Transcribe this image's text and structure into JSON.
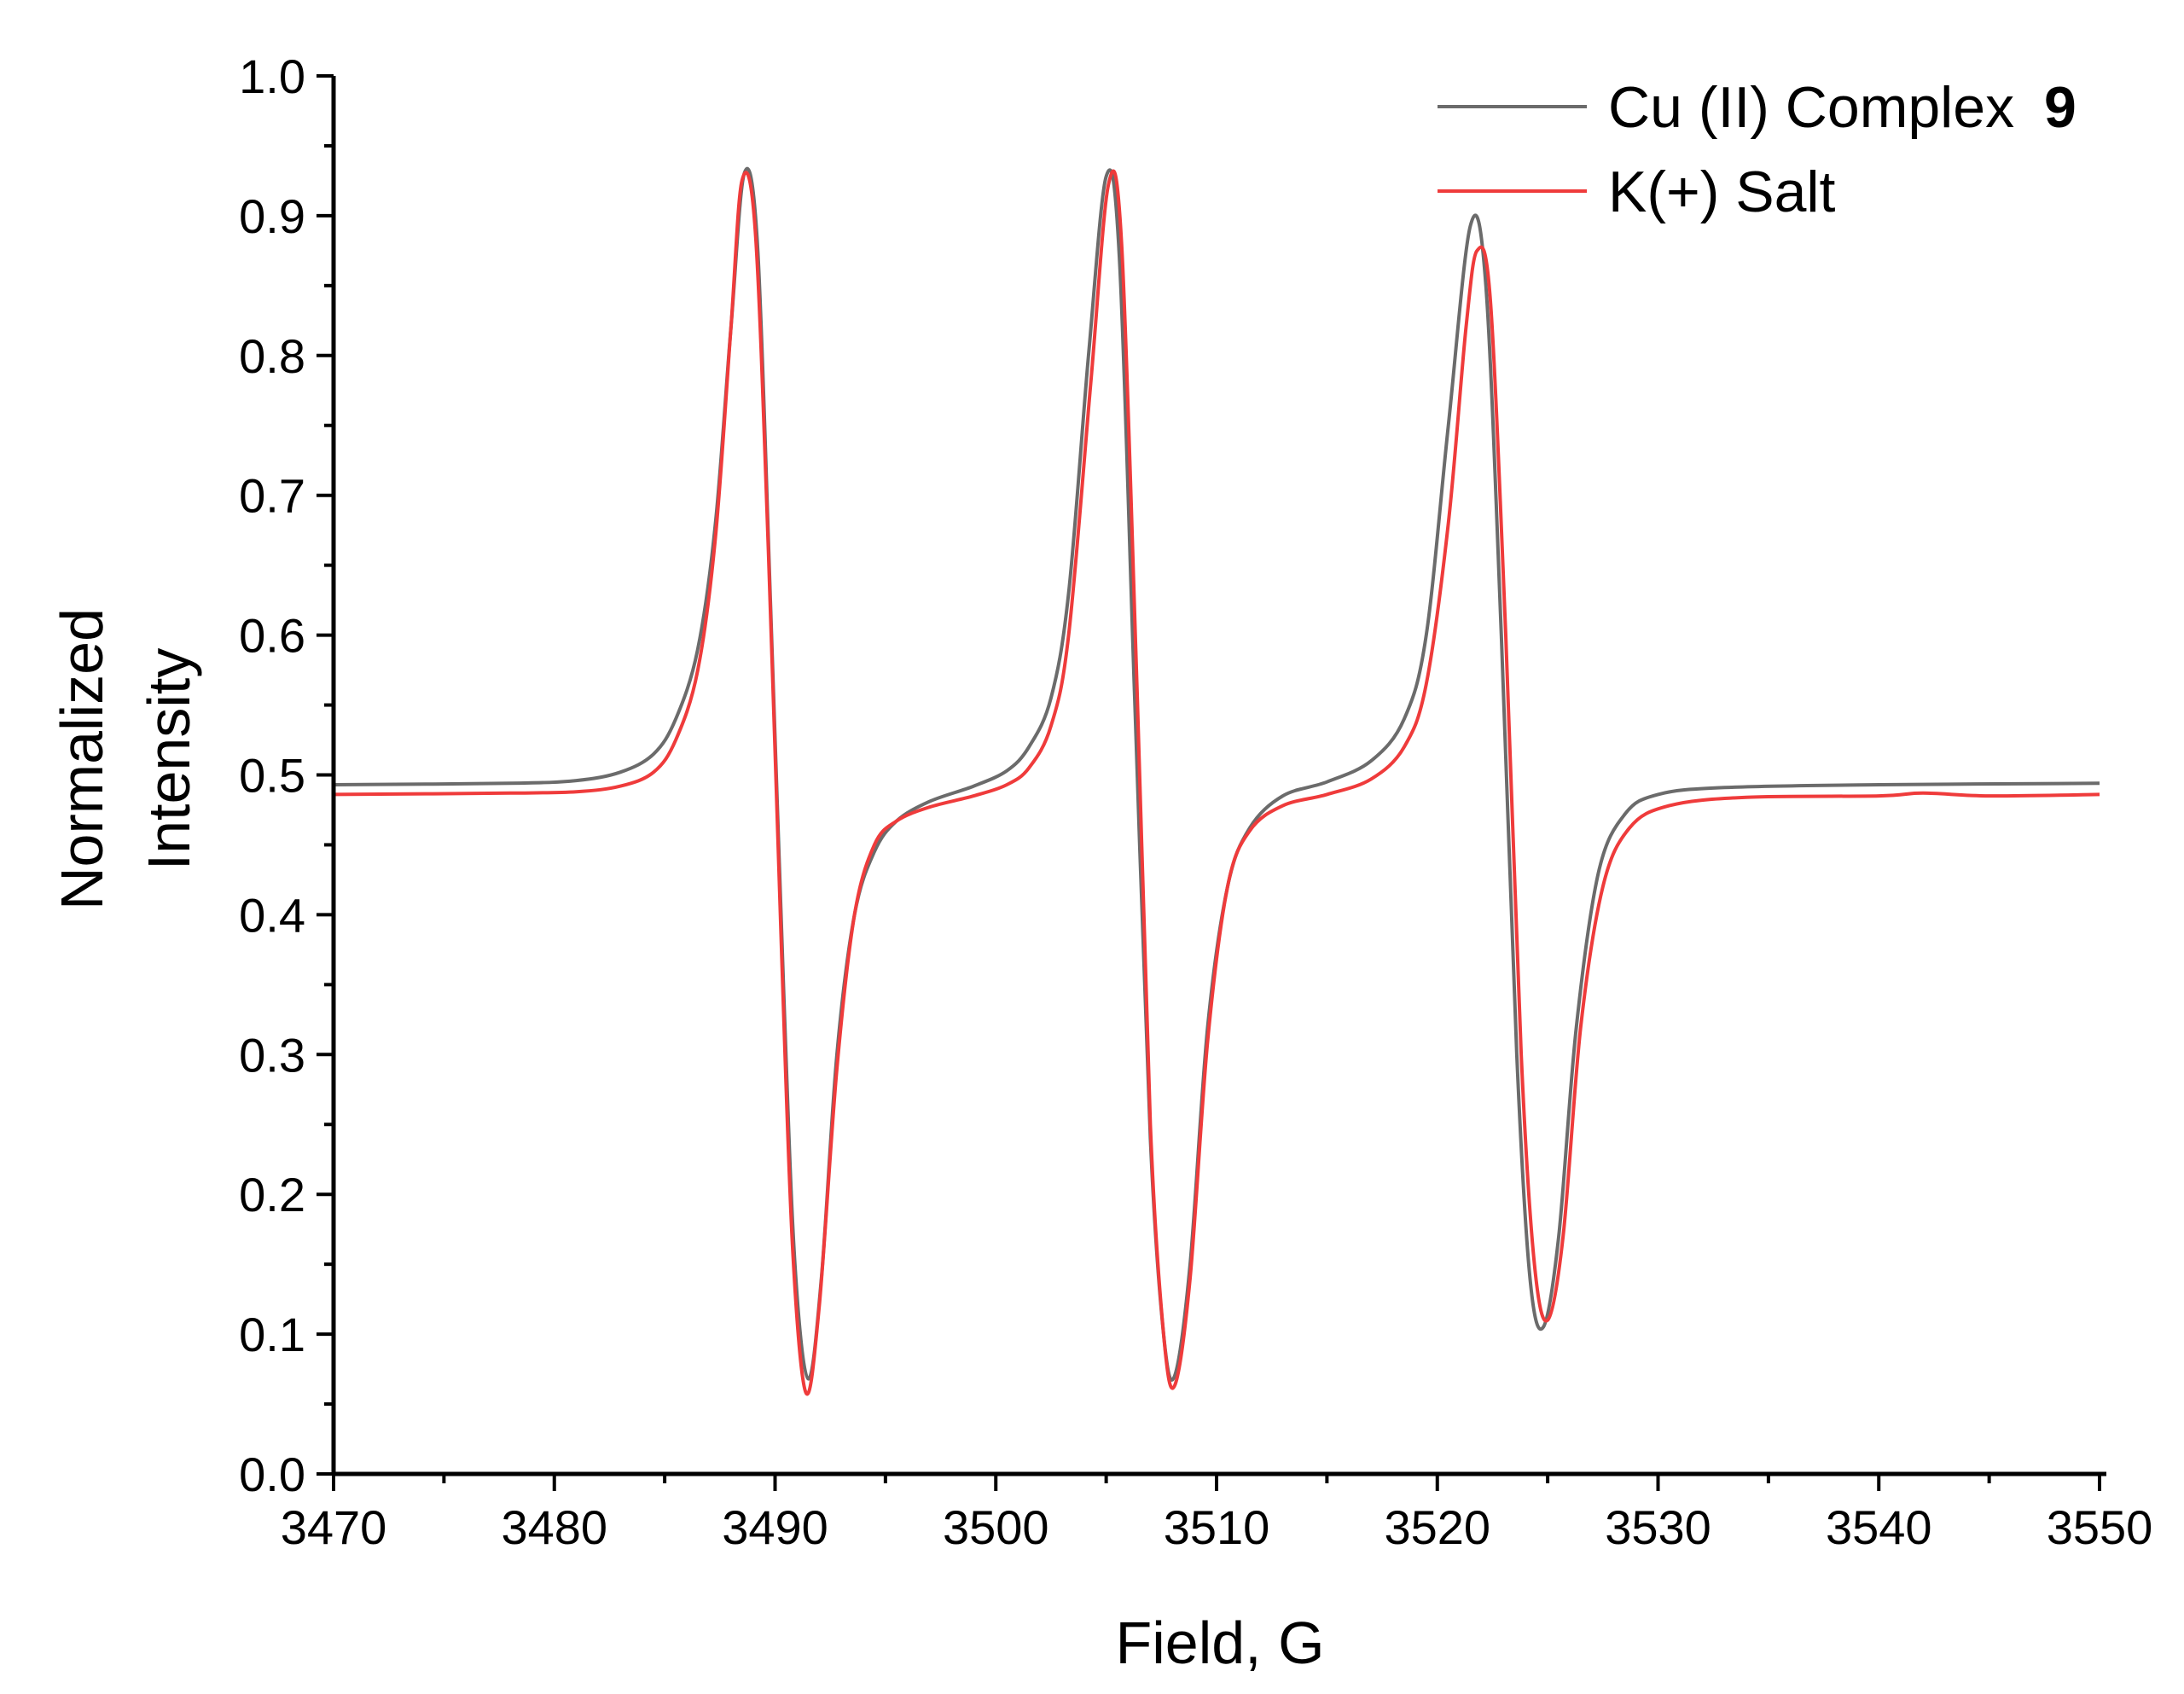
{
  "chart_data": {
    "type": "line",
    "xlabel": "Field, G",
    "ylabel_lines": [
      "Normalized",
      "Intensity"
    ],
    "xlim": [
      3470,
      3550
    ],
    "ylim": [
      0.0,
      1.0
    ],
    "x_ticks": [
      "3470",
      "3480",
      "3490",
      "3500",
      "3510",
      "3520",
      "3530",
      "3540",
      "3550"
    ],
    "y_ticks": [
      "0.0",
      "0.1",
      "0.2",
      "0.3",
      "0.4",
      "0.5",
      "0.6",
      "0.7",
      "0.8",
      "0.9",
      "1.0"
    ],
    "legend_position": "top-right",
    "grid": false,
    "series": [
      {
        "name": "Cu (II) Complex",
        "name_bold_suffix": "9",
        "color": "#6b6b6b",
        "points": [
          [
            3470,
            0.493
          ],
          [
            3478,
            0.494
          ],
          [
            3481,
            0.496
          ],
          [
            3483,
            0.502
          ],
          [
            3484.5,
            0.515
          ],
          [
            3485.5,
            0.54
          ],
          [
            3486.5,
            0.59
          ],
          [
            3487.3,
            0.68
          ],
          [
            3488,
            0.82
          ],
          [
            3488.6,
            0.93
          ],
          [
            3489.2,
            0.88
          ],
          [
            3489.8,
            0.62
          ],
          [
            3490.4,
            0.34
          ],
          [
            3490.9,
            0.15
          ],
          [
            3491.5,
            0.068
          ],
          [
            3492.1,
            0.14
          ],
          [
            3492.8,
            0.3
          ],
          [
            3493.6,
            0.4
          ],
          [
            3494.5,
            0.445
          ],
          [
            3495.5,
            0.467
          ],
          [
            3497,
            0.481
          ],
          [
            3499,
            0.492
          ],
          [
            3500.5,
            0.503
          ],
          [
            3501.5,
            0.52
          ],
          [
            3502.5,
            0.555
          ],
          [
            3503.3,
            0.63
          ],
          [
            3504.2,
            0.8
          ],
          [
            3505,
            0.928
          ],
          [
            3505.6,
            0.87
          ],
          [
            3506.3,
            0.55
          ],
          [
            3507,
            0.24
          ],
          [
            3507.6,
            0.1
          ],
          [
            3508.1,
            0.07
          ],
          [
            3508.8,
            0.15
          ],
          [
            3509.6,
            0.32
          ],
          [
            3510.5,
            0.42
          ],
          [
            3511.5,
            0.462
          ],
          [
            3513,
            0.485
          ],
          [
            3515,
            0.495
          ],
          [
            3517,
            0.51
          ],
          [
            3518.5,
            0.54
          ],
          [
            3519.5,
            0.6
          ],
          [
            3520.5,
            0.75
          ],
          [
            3521.5,
            0.893
          ],
          [
            3522.2,
            0.85
          ],
          [
            3522.9,
            0.6
          ],
          [
            3523.6,
            0.3
          ],
          [
            3524.2,
            0.14
          ],
          [
            3524.8,
            0.105
          ],
          [
            3525.5,
            0.17
          ],
          [
            3526.3,
            0.32
          ],
          [
            3527.3,
            0.43
          ],
          [
            3528.5,
            0.472
          ],
          [
            3530,
            0.486
          ],
          [
            3533,
            0.491
          ],
          [
            3540,
            0.493
          ],
          [
            3550,
            0.494
          ]
        ]
      },
      {
        "name": "K(+) Salt",
        "color": "#ef3b3b",
        "points": [
          [
            3470,
            0.486
          ],
          [
            3478,
            0.487
          ],
          [
            3481,
            0.488
          ],
          [
            3483,
            0.492
          ],
          [
            3484.5,
            0.502
          ],
          [
            3485.5,
            0.525
          ],
          [
            3486.5,
            0.575
          ],
          [
            3487.3,
            0.67
          ],
          [
            3488,
            0.82
          ],
          [
            3488.5,
            0.925
          ],
          [
            3489.1,
            0.89
          ],
          [
            3489.7,
            0.66
          ],
          [
            3490.3,
            0.37
          ],
          [
            3490.8,
            0.16
          ],
          [
            3491.4,
            0.058
          ],
          [
            3492,
            0.12
          ],
          [
            3492.8,
            0.29
          ],
          [
            3493.6,
            0.4
          ],
          [
            3494.5,
            0.45
          ],
          [
            3495.5,
            0.467
          ],
          [
            3497,
            0.477
          ],
          [
            3499,
            0.485
          ],
          [
            3500.5,
            0.493
          ],
          [
            3501.5,
            0.505
          ],
          [
            3502.5,
            0.535
          ],
          [
            3503.3,
            0.6
          ],
          [
            3504.3,
            0.78
          ],
          [
            3505.1,
            0.922
          ],
          [
            3505.7,
            0.88
          ],
          [
            3506.4,
            0.56
          ],
          [
            3507,
            0.25
          ],
          [
            3507.6,
            0.1
          ],
          [
            3508.1,
            0.063
          ],
          [
            3508.8,
            0.14
          ],
          [
            3509.6,
            0.31
          ],
          [
            3510.5,
            0.42
          ],
          [
            3511.5,
            0.46
          ],
          [
            3513,
            0.478
          ],
          [
            3515,
            0.486
          ],
          [
            3517,
            0.497
          ],
          [
            3518.5,
            0.52
          ],
          [
            3519.5,
            0.565
          ],
          [
            3520.5,
            0.68
          ],
          [
            3521.3,
            0.82
          ],
          [
            3521.8,
            0.875
          ],
          [
            3522.4,
            0.84
          ],
          [
            3523.1,
            0.6
          ],
          [
            3523.8,
            0.3
          ],
          [
            3524.4,
            0.15
          ],
          [
            3525,
            0.11
          ],
          [
            3525.7,
            0.17
          ],
          [
            3526.5,
            0.32
          ],
          [
            3527.5,
            0.42
          ],
          [
            3528.7,
            0.462
          ],
          [
            3530.5,
            0.478
          ],
          [
            3534,
            0.484
          ],
          [
            3540,
            0.485
          ],
          [
            3542,
            0.487
          ],
          [
            3545,
            0.485
          ],
          [
            3550,
            0.486
          ]
        ]
      }
    ]
  }
}
